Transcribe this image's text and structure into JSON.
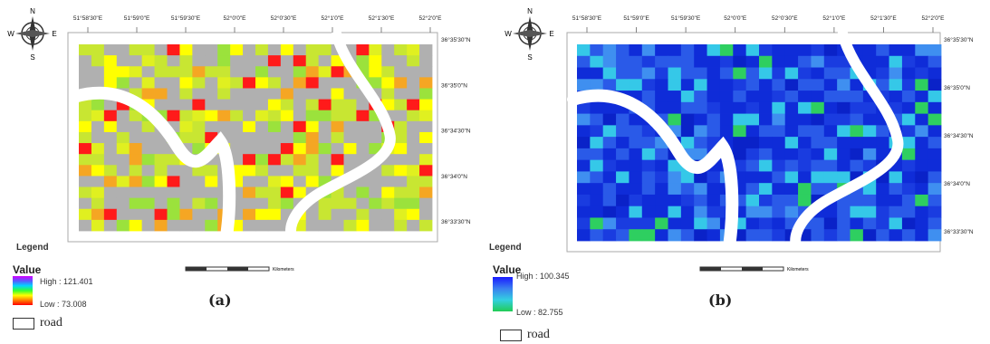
{
  "panels": [
    {
      "id": "a",
      "label": "(a)",
      "legend_title": "Legend",
      "value_title": "Value",
      "high": "High : 121.401",
      "low": "Low : 73.008",
      "road_label": "road",
      "scalebar_units": "Kilometers",
      "top_ticks": [
        "51°58'30\"E",
        "51°59'0\"E",
        "51°59'30\"E",
        "52°0'0\"E",
        "52°0'30\"E",
        "52°1'0\"E",
        "52°1'30\"E",
        "52°2'0\"E"
      ],
      "right_ticks": [
        "36°35'30\"N",
        "36°35'0\"N",
        "36°34'30\"N",
        "36°34'0\"N",
        "36°33'30\"N"
      ],
      "ramp_colors": [
        "#d400ff",
        "#5a5aff",
        "#00d4ff",
        "#33ff33",
        "#ffff00",
        "#ff7f00",
        "#ff0000"
      ],
      "cell_palette": [
        "#b0b0b0",
        "#c8e632",
        "#ffff00",
        "#9be23c",
        "#f5a623",
        "#ff1a1a",
        "#e0f020"
      ]
    },
    {
      "id": "b",
      "label": "(b)",
      "legend_title": "Legend",
      "value_title": "Value",
      "high": "High : 100.345",
      "low": "Low : 82.755",
      "road_label": "road",
      "scalebar_units": "Kilometers",
      "top_ticks": [
        "51°58'30\"E",
        "51°59'0\"E",
        "51°59'30\"E",
        "52°0'0\"E",
        "52°0'30\"E",
        "52°1'0\"E",
        "52°1'30\"E",
        "52°2'0\"E"
      ],
      "right_ticks": [
        "36°35'30\"N",
        "36°35'0\"N",
        "36°34'30\"N",
        "36°34'0\"N",
        "36°33'30\"N"
      ],
      "ramp_colors": [
        "#1a1aff",
        "#3a7ff0",
        "#33d0e0",
        "#22cc55"
      ],
      "cell_palette": [
        "#0f2cd8",
        "#2a5ae8",
        "#1a3ce0",
        "#35c8e8",
        "#2ecf60",
        "#3f8ff0",
        "#0a22c8"
      ]
    }
  ],
  "compass": {
    "n": "N",
    "s": "S",
    "e": "E",
    "w": "W"
  }
}
